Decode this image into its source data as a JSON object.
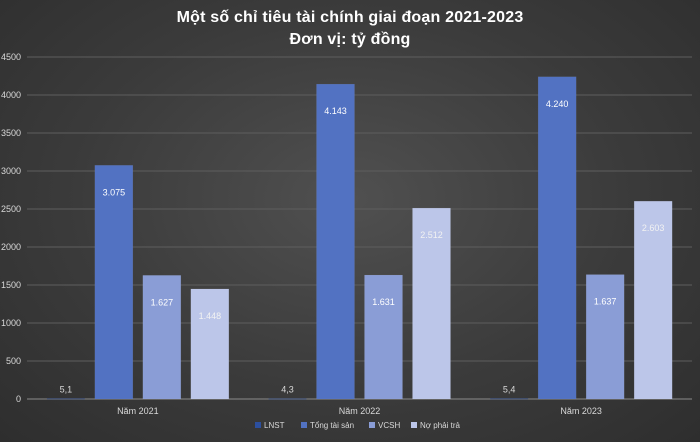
{
  "chart_data": {
    "type": "bar",
    "title": "Một số chỉ tiêu tài chính giai đoạn 2021-2023",
    "subtitle": "Đơn vị: tỷ đồng",
    "categories": [
      "Năm 2021",
      "Năm 2022",
      "Năm 2023"
    ],
    "series": [
      {
        "name": "LNST",
        "values": [
          5.1,
          4.3,
          5.4
        ],
        "labels": [
          "5,1",
          "4,3",
          "5,4"
        ],
        "color": "#2c4f9e"
      },
      {
        "name": "Tổng tài sản",
        "values": [
          3075,
          4143,
          4240
        ],
        "labels": [
          "3.075",
          "4.143",
          "4.240"
        ],
        "color": "#5272c2"
      },
      {
        "name": "VCSH",
        "values": [
          1627,
          1631,
          1637
        ],
        "labels": [
          "1.627",
          "1.631",
          "1.637"
        ],
        "color": "#8a9dd6"
      },
      {
        "name": "Nợ phải trả",
        "values": [
          1448,
          2512,
          2603
        ],
        "labels": [
          "1.448",
          "2.512",
          "2.603"
        ],
        "color": "#bcc6e9"
      }
    ],
    "yticks": [
      "0",
      "500",
      "1000",
      "1500",
      "2000",
      "2500",
      "3000",
      "3500",
      "4000",
      "4500"
    ],
    "ylim": [
      0,
      4500
    ],
    "grid": true,
    "legend_position": "bottom"
  }
}
